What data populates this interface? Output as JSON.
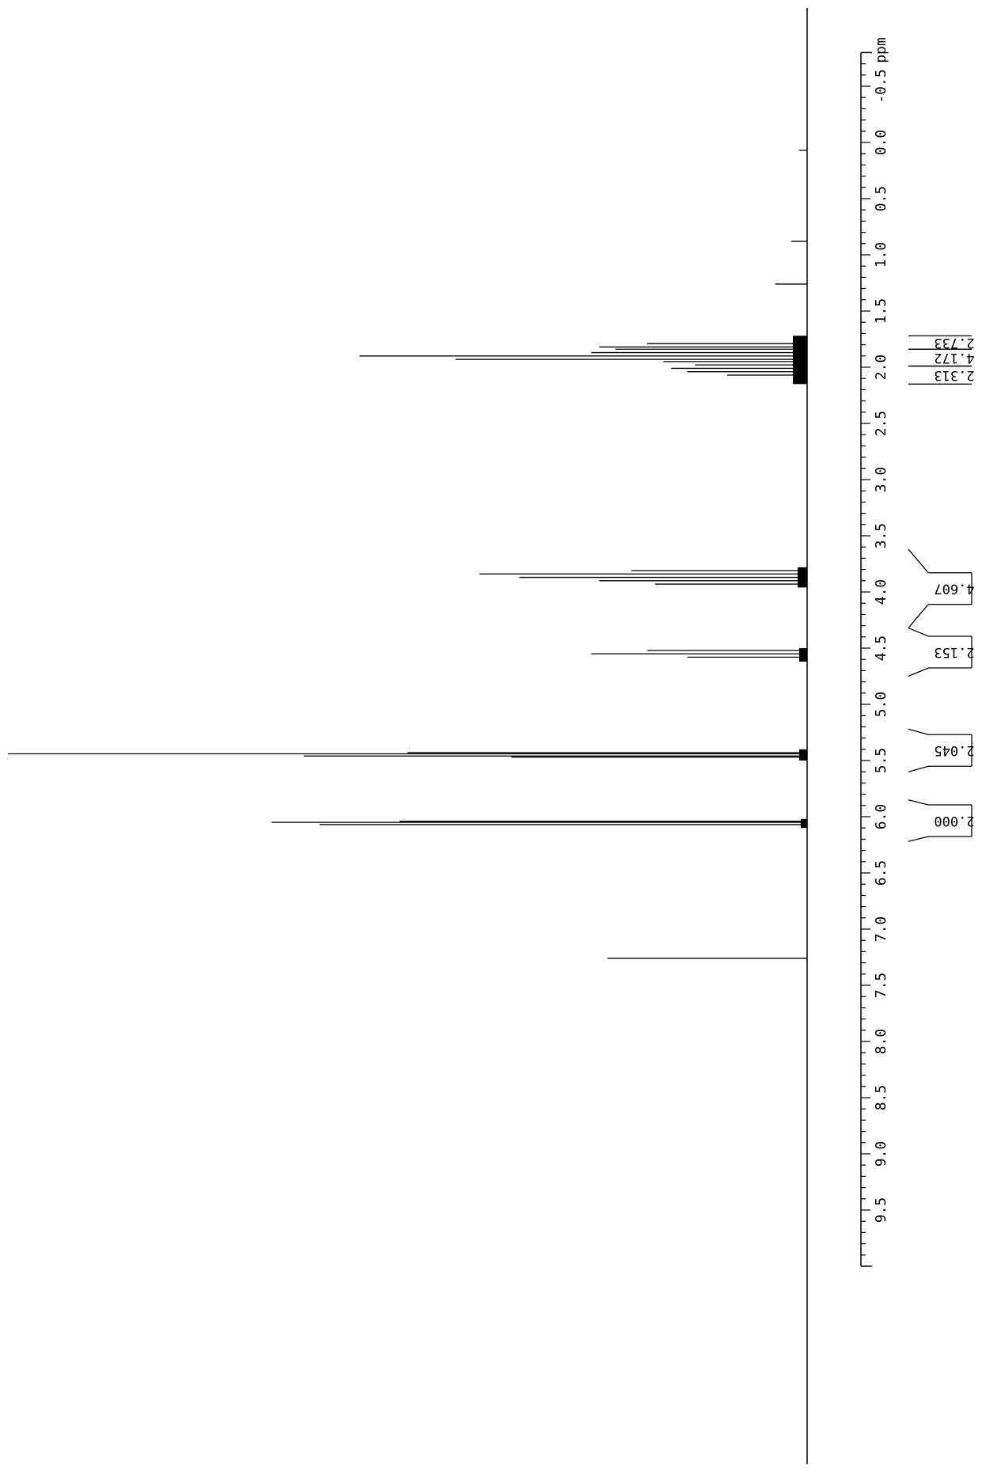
{
  "chart_data": {
    "type": "line",
    "title": "",
    "axis": {
      "unit_label": "ppm",
      "range": [
        -0.8,
        10.0
      ],
      "reversed": false,
      "major_ticks": [
        -0.5,
        0.0,
        0.5,
        1.0,
        1.5,
        2.0,
        2.5,
        3.0,
        3.5,
        4.0,
        4.5,
        5.0,
        5.5,
        6.0,
        6.5,
        7.0,
        7.5,
        8.0,
        8.5,
        9.0,
        9.5
      ],
      "tick_labels": [
        "-0.5",
        "0.0",
        "0.5",
        "1.0",
        "1.5",
        "2.0",
        "2.5",
        "3.0",
        "3.5",
        "4.0",
        "4.5",
        "5.0",
        "5.5",
        "6.0",
        "6.5",
        "7.0",
        "7.5",
        "8.0",
        "8.5",
        "9.0",
        "9.5"
      ],
      "minor_tick_step": 0.1
    },
    "peaks": [
      {
        "ppm": 5.44,
        "intensity": 1.0
      },
      {
        "ppm": 5.46,
        "intensity": 0.63
      },
      {
        "ppm": 5.43,
        "intensity": 0.5
      },
      {
        "ppm": 5.47,
        "intensity": 0.37
      },
      {
        "ppm": 6.05,
        "intensity": 0.67
      },
      {
        "ppm": 6.07,
        "intensity": 0.61
      },
      {
        "ppm": 6.04,
        "intensity": 0.51
      },
      {
        "ppm": 1.9,
        "intensity": 0.56
      },
      {
        "ppm": 1.93,
        "intensity": 0.44
      },
      {
        "ppm": 1.87,
        "intensity": 0.27
      },
      {
        "ppm": 1.82,
        "intensity": 0.26
      },
      {
        "ppm": 1.84,
        "intensity": 0.24
      },
      {
        "ppm": 1.79,
        "intensity": 0.2
      },
      {
        "ppm": 1.95,
        "intensity": 0.18
      },
      {
        "ppm": 1.98,
        "intensity": 0.14
      },
      {
        "ppm": 2.01,
        "intensity": 0.17
      },
      {
        "ppm": 2.04,
        "intensity": 0.15
      },
      {
        "ppm": 2.07,
        "intensity": 0.1
      },
      {
        "ppm": 3.84,
        "intensity": 0.41
      },
      {
        "ppm": 3.87,
        "intensity": 0.36
      },
      {
        "ppm": 3.9,
        "intensity": 0.26
      },
      {
        "ppm": 3.81,
        "intensity": 0.22
      },
      {
        "ppm": 3.93,
        "intensity": 0.19
      },
      {
        "ppm": 4.55,
        "intensity": 0.27
      },
      {
        "ppm": 4.52,
        "intensity": 0.2
      },
      {
        "ppm": 4.58,
        "intensity": 0.15
      },
      {
        "ppm": 7.26,
        "intensity": 0.25
      },
      {
        "ppm": 1.26,
        "intensity": 0.04
      },
      {
        "ppm": 0.88,
        "intensity": 0.02
      },
      {
        "ppm": 0.07,
        "intensity": 0.01
      }
    ],
    "integrals": [
      {
        "label": "2.733",
        "start_ppm": 1.72,
        "end_ppm": 1.84
      },
      {
        "label": "4.172",
        "start_ppm": 1.84,
        "end_ppm": 1.99
      },
      {
        "label": "2.313",
        "start_ppm": 1.99,
        "end_ppm": 2.15
      },
      {
        "label": "4.607",
        "start_ppm": 3.62,
        "end_ppm": 4.32
      },
      {
        "label": "2.153",
        "start_ppm": 4.32,
        "end_ppm": 4.75
      },
      {
        "label": "2.045",
        "start_ppm": 5.22,
        "end_ppm": 5.6
      },
      {
        "label": "2.000",
        "start_ppm": 5.85,
        "end_ppm": 6.22
      }
    ]
  }
}
